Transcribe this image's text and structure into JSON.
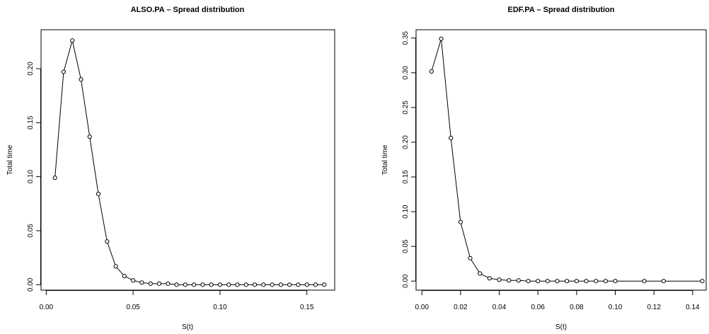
{
  "chart_data": [
    {
      "type": "line",
      "title": "ALSO.PA  – Spread distribution",
      "x_label": "S(t)",
      "y_label": "Total time",
      "color": "#000000",
      "x": [
        0.005,
        0.01,
        0.015,
        0.02,
        0.025,
        0.03,
        0.035,
        0.04,
        0.045,
        0.05,
        0.055,
        0.06,
        0.065,
        0.07,
        0.075,
        0.08,
        0.085,
        0.09,
        0.095,
        0.1,
        0.105,
        0.11,
        0.115,
        0.12,
        0.125,
        0.13,
        0.135,
        0.14,
        0.145,
        0.15,
        0.155,
        0.16
      ],
      "values": [
        0.099,
        0.197,
        0.226,
        0.19,
        0.137,
        0.084,
        0.04,
        0.017,
        0.008,
        0.004,
        0.002,
        0.001,
        0.001,
        0.001,
        0,
        0,
        0,
        0,
        0,
        0,
        0,
        0,
        0,
        0,
        0,
        0,
        0,
        0,
        0,
        0,
        0,
        0
      ],
      "xlim": [
        -0.003,
        0.166
      ],
      "ylim": [
        -0.005,
        0.236
      ],
      "xticks": [
        {
          "value": 0,
          "label": "0.00"
        },
        {
          "value": 0.05,
          "label": "0.05"
        },
        {
          "value": 0.1,
          "label": "0.10"
        },
        {
          "value": 0.15,
          "label": "0.15"
        }
      ],
      "yticks": [
        {
          "value": 0,
          "label": "0.00"
        },
        {
          "value": 0.05,
          "label": "0.05"
        },
        {
          "value": 0.1,
          "label": "0.10"
        },
        {
          "value": 0.15,
          "label": "0.15"
        },
        {
          "value": 0.2,
          "label": "0.20"
        }
      ]
    },
    {
      "type": "line",
      "title": "EDF.PA  – Spread distribution",
      "x_label": "S(t)",
      "y_label": "Total time",
      "color": "#000000",
      "x": [
        0.005,
        0.01,
        0.015,
        0.02,
        0.025,
        0.03,
        0.035,
        0.04,
        0.045,
        0.05,
        0.055,
        0.06,
        0.065,
        0.07,
        0.075,
        0.08,
        0.085,
        0.09,
        0.095,
        0.1,
        0.115,
        0.125,
        0.145
      ],
      "values": [
        0.302,
        0.349,
        0.206,
        0.085,
        0.033,
        0.011,
        0.004,
        0.002,
        0.001,
        0.001,
        0,
        0,
        0,
        0,
        0,
        0,
        0,
        0,
        0,
        0,
        0,
        0,
        0
      ],
      "xlim": [
        -0.003,
        0.147
      ],
      "ylim": [
        -0.013,
        0.362
      ],
      "xticks": [
        {
          "value": 0,
          "label": "0.00"
        },
        {
          "value": 0.02,
          "label": "0.02"
        },
        {
          "value": 0.04,
          "label": "0.04"
        },
        {
          "value": 0.06,
          "label": "0.06"
        },
        {
          "value": 0.08,
          "label": "0.08"
        },
        {
          "value": 0.1,
          "label": "0.10"
        },
        {
          "value": 0.12,
          "label": "0.12"
        },
        {
          "value": 0.14,
          "label": "0.14"
        }
      ],
      "yticks": [
        {
          "value": 0,
          "label": "0.00"
        },
        {
          "value": 0.05,
          "label": "0.05"
        },
        {
          "value": 0.1,
          "label": "0.10"
        },
        {
          "value": 0.15,
          "label": "0.15"
        },
        {
          "value": 0.2,
          "label": "0.20"
        },
        {
          "value": 0.25,
          "label": "0.25"
        },
        {
          "value": 0.3,
          "label": "0.30"
        },
        {
          "value": 0.35,
          "label": "0.35"
        }
      ]
    }
  ]
}
